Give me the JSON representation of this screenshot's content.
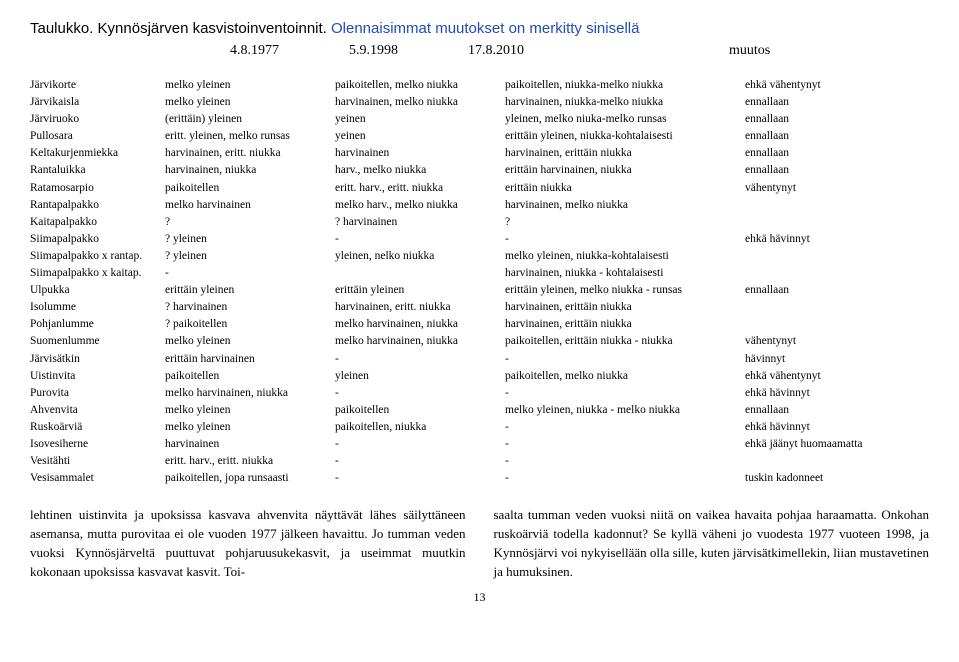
{
  "title_prefix": "Taulukko. Kynnösjärven kasvistoinventoinnit. ",
  "title_blue": "Olennaisimmat muutokset on merkitty sinisellä",
  "years": {
    "y1": "4.8.1977",
    "y2": "5.9.1998",
    "y3": "17.8.2010",
    "muutos": "muutos"
  },
  "rows": [
    {
      "n": "Järvikorte",
      "c1": "melko yleinen",
      "c2": "paikoitellen, melko niukka",
      "c3": "paikoitellen, niukka-melko niukka",
      "m": "ehkä vähentynyt"
    },
    {
      "n": "Järvikaisla",
      "c1": "melko yleinen",
      "c2": "harvinainen, melko niukka",
      "c3": "harvinainen, niukka-melko niukka",
      "m": "ennallaan"
    },
    {
      "n": "Järviruoko",
      "c1": "(erittäin) yleinen",
      "c2": "yeinen",
      "c3": "yleinen, melko niuka-melko runsas",
      "m": "ennallaan"
    },
    {
      "n": "Pullosara",
      "c1": "eritt. yleinen, melko runsas",
      "c2": "yeinen",
      "c3": "erittäin yleinen, niukka-kohtalaisesti",
      "m": "ennallaan"
    },
    {
      "n": "Keltakurjenmiekka",
      "c1": "harvinainen, eritt. niukka",
      "c2": "harvinainen",
      "c3": "harvinainen, erittäin niukka",
      "m": "ennallaan"
    },
    {
      "n": "Rantaluikka",
      "c1": "harvinainen, niukka",
      "c2": "harv., melko niukka",
      "c3": "erittäin harvinainen, niukka",
      "m": "ennallaan"
    },
    {
      "n": "Ratamosarpio",
      "c1": "paikoitellen",
      "c2": "eritt. harv., eritt. niukka",
      "c3": "erittäin niukka",
      "m": "vähentynyt"
    },
    {
      "n": "Rantapalpakko",
      "c1": "melko harvinainen",
      "c2": "melko harv., melko niukka",
      "c3": "harvinainen, melko niukka",
      "m": ""
    },
    {
      "n": "Kaitapalpakko",
      "c1": "?",
      "c2": "? harvinainen",
      "c3": "?",
      "m": ""
    },
    {
      "n": "Siimapalpakko",
      "c1": "? yleinen",
      "c2": "-",
      "c3": "-",
      "m": "ehkä hävinnyt"
    },
    {
      "n": "Siimapalpakko x rantap.",
      "c1": "? yleinen",
      "c2": "yleinen, nelko niukka",
      "c3": "melko yleinen, niukka-kohtalaisesti",
      "m": ""
    },
    {
      "n": "Siimapalpakko x kaitap.",
      "c1": "-",
      "c2": "",
      "c3": "harvinainen, niukka - kohtalaisesti",
      "m": ""
    },
    {
      "n": "Ulpukka",
      "c1": "erittäin yleinen",
      "c2": "erittäin yleinen",
      "c3": "erittäin yleinen, melko niukka - runsas",
      "m": "ennallaan"
    },
    {
      "n": "Isolumme",
      "c1": "? harvinainen",
      "c2": "harvinainen, eritt. niukka",
      "c3": "harvinainen, erittäin niukka",
      "m": ""
    },
    {
      "n": "Pohjanlumme",
      "c1": "? paikoitellen",
      "c2": "melko harvinainen, niukka",
      "c3": "harvinainen, erittäin niukka",
      "m": ""
    },
    {
      "n": "Suomenlumme",
      "c1": "melko yleinen",
      "c2": "melko harvinainen, niukka",
      "c3": "paikoitellen, erittäin niukka - niukka",
      "m": "vähentynyt"
    },
    {
      "n": "Järvisätkin",
      "c1": "erittäin harvinainen",
      "c2": "-",
      "c3": "-",
      "m": "hävinnyt"
    },
    {
      "n": "Uistinvita",
      "c1": "paikoitellen",
      "c2": "yleinen",
      "c3": "paikoitellen, melko niukka",
      "m": "ehkä vähentynyt"
    },
    {
      "n": "Purovita",
      "c1": "melko harvinainen, niukka",
      "c2": "-",
      "c3": "-",
      "m": "ehkä hävinnyt"
    },
    {
      "n": "Ahvenvita",
      "c1": "melko yleinen",
      "c2": "paikoitellen",
      "c3": "melko yleinen, niukka - melko niukka",
      "m": "ennallaan"
    },
    {
      "n": "Ruskoärviä",
      "c1": "melko yleinen",
      "c2": "paikoitellen, niukka",
      "c3": "-",
      "m": "ehkä hävinnyt"
    },
    {
      "n": "Isovesiherne",
      "c1": "harvinainen",
      "c2": "-",
      "c3": "-",
      "m": "ehkä jäänyt huomaamatta"
    },
    {
      "n": "Vesitähti",
      "c1": "eritt. harv., eritt. niukka",
      "c2": "-",
      "c3": "-",
      "m": ""
    },
    {
      "n": "Vesisammalet",
      "c1": "paikoitellen, jopa runsaasti",
      "c2": "-",
      "c3": "-",
      "m": "tuskin kadonneet"
    }
  ],
  "para_left": "lehtinen uistinvita ja upoksissa kasvava ahvenvita näyttävät lähes säilyttäneen asemansa, mutta purovitaa ei ole vuoden 1977 jälkeen havaittu. Jo tumman veden vuoksi Kynnösjärveltä puuttuvat pohjaruusukekasvit, ja useimmat muutkin kokonaan upoksissa kasvavat kasvit. Toi-",
  "para_right": "saalta tumman veden vuoksi niitä on vaikea havaita pohjaa haraamatta.  Onkohan ruskoärviä todella kadonnut? Se kyllä väheni jo vuodesta 1977 vuoteen 1998, ja Kynnösjärvi voi nykyisellään olla sille, kuten järvisätkimellekin, liian mustavetinen ja humuksinen.",
  "page_num": "13"
}
